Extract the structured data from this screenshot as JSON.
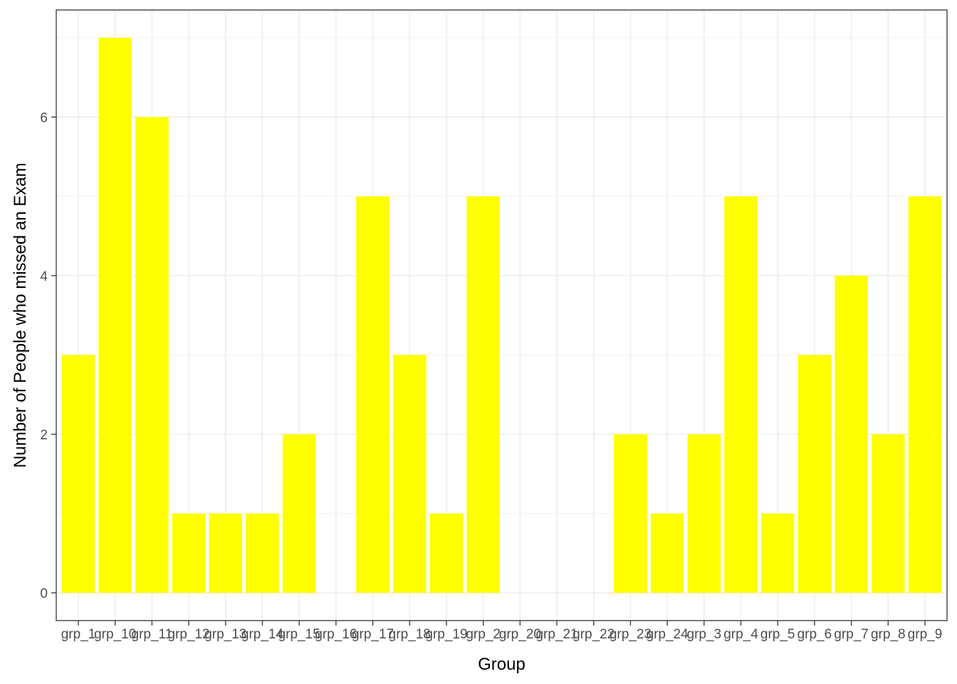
{
  "chart_data": {
    "type": "bar",
    "categories": [
      "grp_1",
      "grp_10",
      "grp_11",
      "grp_12",
      "grp_13",
      "grp_14",
      "grp_15",
      "grp_16",
      "grp_17",
      "grp_18",
      "grp_19",
      "grp_2",
      "grp_20",
      "grp_21",
      "grp_22",
      "grp_23",
      "grp_24",
      "grp_3",
      "grp_4",
      "grp_5",
      "grp_6",
      "grp_7",
      "grp_8",
      "grp_9"
    ],
    "values": [
      3,
      7,
      6,
      1,
      1,
      1,
      2,
      0,
      5,
      3,
      1,
      5,
      0,
      0,
      0,
      2,
      1,
      2,
      5,
      1,
      3,
      4,
      2,
      5
    ],
    "xlabel": "Group",
    "ylabel": "Number of People who missed an Exam",
    "ylim": [
      -0.35,
      7.35
    ],
    "yticks": [
      0,
      2,
      4,
      6
    ],
    "grid": true,
    "colors": {
      "bar": "#FFFF00",
      "grid": "#EBEBEB",
      "border": "#333333",
      "tick_text": "#4D4D4D"
    }
  }
}
